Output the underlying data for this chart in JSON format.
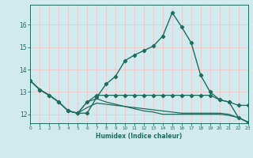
{
  "xlabel": "Humidex (Indice chaleur)",
  "ylabel": "",
  "background_color": "#d0eaed",
  "grid_color": "#f0c8c8",
  "line_color": "#1f6b5e",
  "x_ticks": [
    0,
    1,
    2,
    3,
    4,
    5,
    6,
    7,
    8,
    9,
    10,
    11,
    12,
    13,
    14,
    15,
    16,
    17,
    18,
    19,
    20,
    21,
    22,
    23
  ],
  "y_ticks": [
    12,
    13,
    14,
    15,
    16
  ],
  "ylim": [
    11.6,
    16.9
  ],
  "xlim": [
    0,
    23
  ],
  "series": [
    {
      "x": [
        0,
        1,
        2,
        3,
        4,
        5,
        6,
        7,
        8,
        9,
        10,
        11,
        12,
        13,
        14,
        15,
        16,
        17,
        18,
        19,
        20,
        21,
        22,
        23
      ],
      "y": [
        13.5,
        13.1,
        12.85,
        12.55,
        12.15,
        12.05,
        12.05,
        12.75,
        13.35,
        13.7,
        14.4,
        14.65,
        14.85,
        15.05,
        15.5,
        16.55,
        15.9,
        15.2,
        13.75,
        13.0,
        12.65,
        12.55,
        11.85,
        11.65
      ],
      "marker": "D",
      "markersize": 2.2,
      "linewidth": 1.0,
      "has_marker": true
    },
    {
      "x": [
        0,
        1,
        2,
        3,
        4,
        5,
        6,
        7,
        8,
        9,
        10,
        11,
        12,
        13,
        14,
        15,
        16,
        17,
        18,
        19,
        20,
        21,
        22,
        23
      ],
      "y": [
        13.5,
        13.1,
        12.85,
        12.55,
        12.15,
        12.05,
        12.55,
        12.85,
        12.85,
        12.85,
        12.85,
        12.85,
        12.85,
        12.85,
        12.85,
        12.85,
        12.85,
        12.85,
        12.85,
        12.85,
        12.65,
        12.55,
        12.4,
        12.4
      ],
      "marker": "D",
      "markersize": 2.2,
      "linewidth": 0.9,
      "has_marker": true
    },
    {
      "x": [
        0,
        1,
        2,
        3,
        4,
        5,
        6,
        7,
        8,
        9,
        10,
        11,
        12,
        13,
        14,
        15,
        16,
        17,
        18,
        19,
        20,
        21,
        22,
        23
      ],
      "y": [
        13.5,
        13.1,
        12.85,
        12.55,
        12.15,
        12.05,
        12.55,
        12.7,
        12.55,
        12.45,
        12.35,
        12.25,
        12.15,
        12.1,
        12.0,
        12.0,
        12.0,
        12.0,
        12.0,
        12.0,
        12.0,
        11.95,
        11.85,
        11.65
      ],
      "marker": null,
      "markersize": 0,
      "linewidth": 0.9,
      "has_marker": false
    },
    {
      "x": [
        0,
        1,
        2,
        3,
        4,
        5,
        6,
        7,
        8,
        9,
        10,
        11,
        12,
        13,
        14,
        15,
        16,
        17,
        18,
        19,
        20,
        21,
        22,
        23
      ],
      "y": [
        13.5,
        13.1,
        12.85,
        12.55,
        12.15,
        12.05,
        12.3,
        12.5,
        12.45,
        12.4,
        12.35,
        12.3,
        12.25,
        12.2,
        12.15,
        12.1,
        12.05,
        12.05,
        12.05,
        12.05,
        12.05,
        12.0,
        11.85,
        11.65
      ],
      "marker": null,
      "markersize": 0,
      "linewidth": 0.9,
      "has_marker": false
    }
  ]
}
